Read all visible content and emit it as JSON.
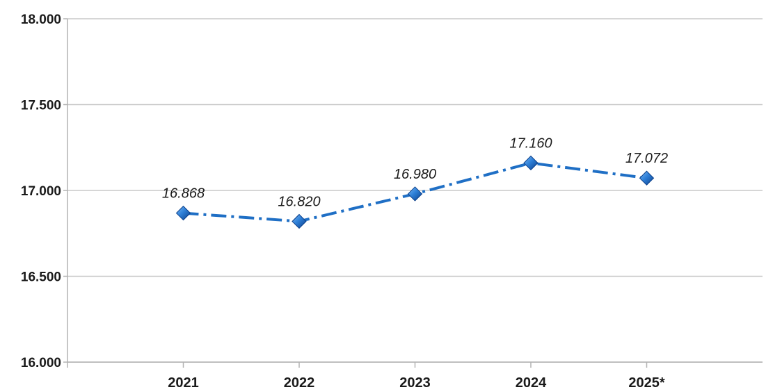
{
  "chart_data": {
    "type": "line",
    "categories": [
      "2021",
      "2022",
      "2023",
      "2024",
      "2025*"
    ],
    "series": [
      {
        "values": [
          16868,
          16820,
          16980,
          17160,
          17072
        ],
        "data_labels": [
          "16.868",
          "16.820",
          "16.980",
          "17.160",
          "17.072"
        ]
      }
    ],
    "ylim": [
      16000,
      18000
    ],
    "yticks": [
      16000,
      16500,
      17000,
      17500,
      18000
    ],
    "ytick_labels": [
      "16.000",
      "16.500",
      "17.000",
      "17.500",
      "18.000"
    ],
    "grid": true,
    "line_style": "dash-dot",
    "marker": "diamond",
    "colors": {
      "series": "#1f6fc5",
      "marker_light": "#5da4ec",
      "marker_dark": "#0b3f8a",
      "grid": "#c8c8c8",
      "axis": "#b3b3b3",
      "text": "#1a1a1a"
    }
  }
}
